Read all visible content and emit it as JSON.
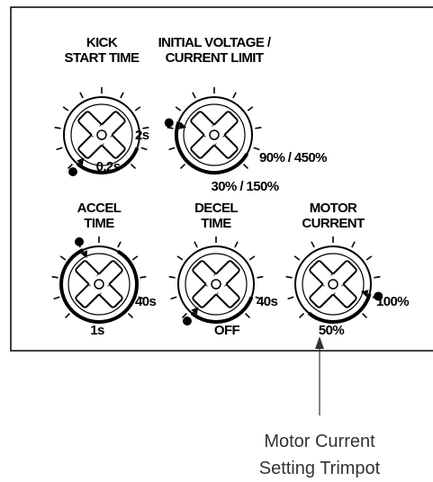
{
  "knobs": [
    {
      "label": [
        "KICK",
        "START TIME"
      ],
      "min": "0,2s",
      "max": "2s"
    },
    {
      "label": [
        "INITIAL VOLTAGE /",
        "CURRENT  LIMIT"
      ],
      "min": "30% / 150%",
      "max": "90% / 450%"
    },
    {
      "label": [
        "ACCEL",
        "TIME"
      ],
      "min": "1s",
      "max": "40s"
    },
    {
      "label": [
        "DECEL",
        "TIME"
      ],
      "min": "OFF",
      "max": "40s"
    },
    {
      "label": [
        "MOTOR",
        "CURRENT"
      ],
      "min": "50%",
      "max": "100%"
    }
  ],
  "callout": [
    "Motor Current",
    "Setting Trimpot"
  ]
}
